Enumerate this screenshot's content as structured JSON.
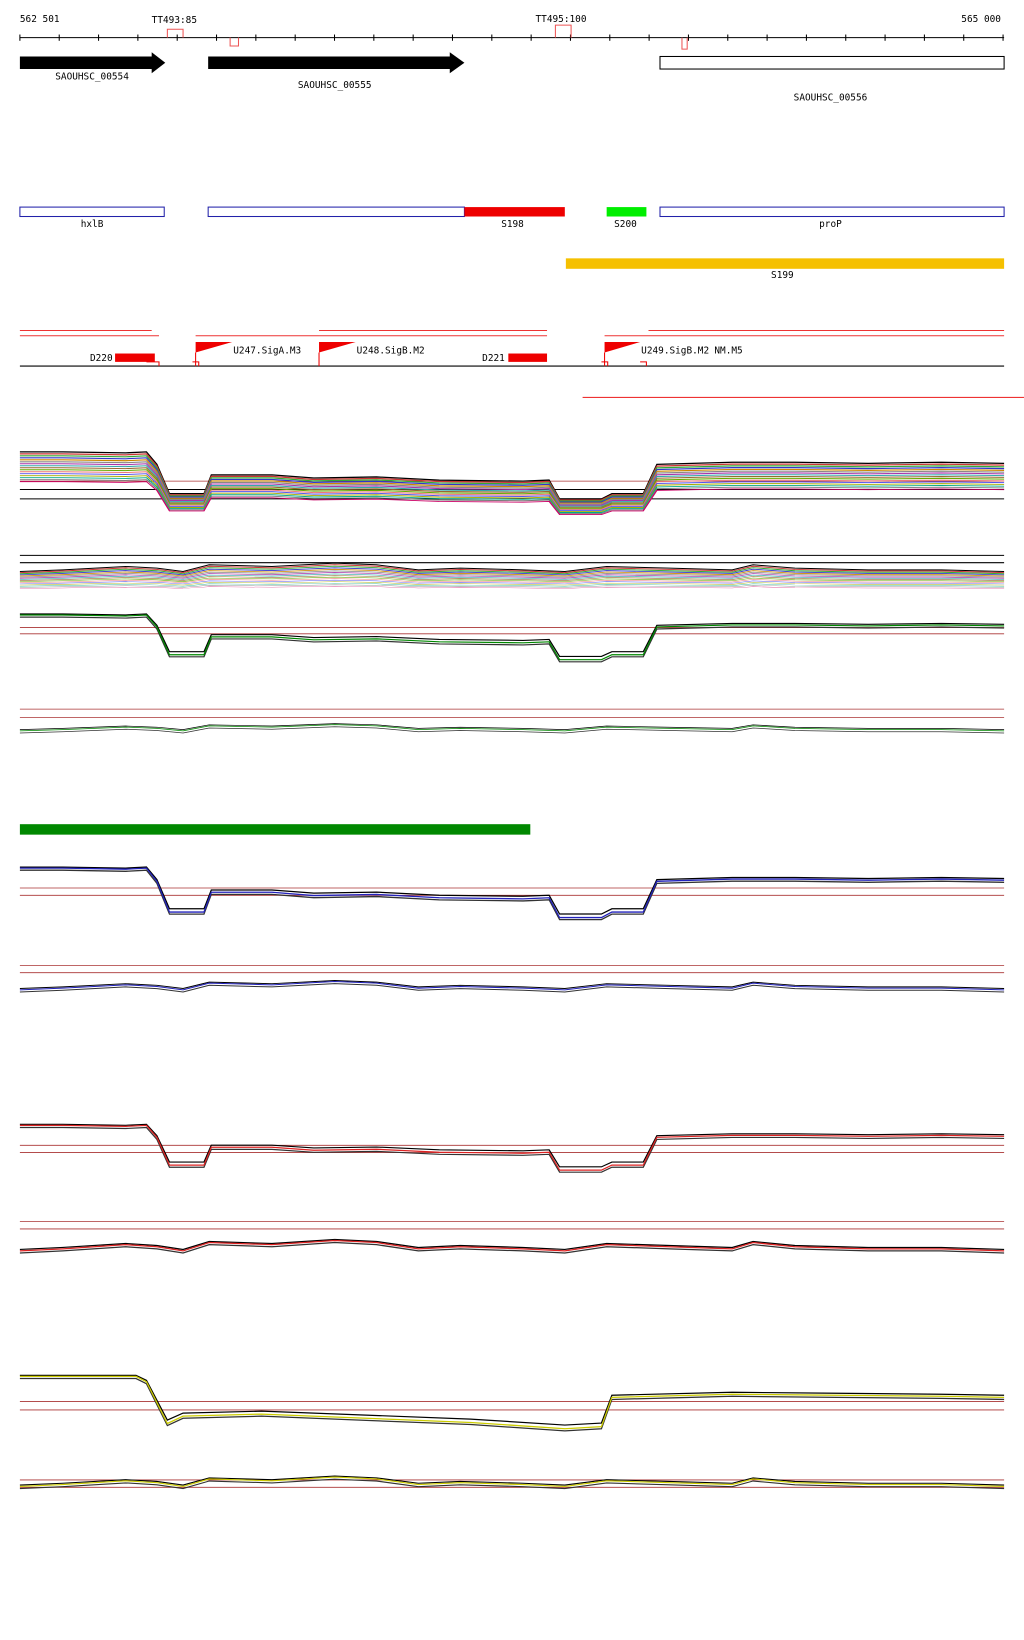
{
  "ruler": {
    "start": "562 501",
    "end": "565 000",
    "markers": [
      "TT493:85",
      "TT495:100"
    ]
  },
  "genes": [
    "SAOUHSC_00554",
    "SAOUHSC_00555",
    "SAOUHSC_00556"
  ],
  "features": [
    "hxlB",
    "S198",
    "S200",
    "proP",
    "S199"
  ],
  "regulatory": [
    "D220",
    "U247.SigA.M3",
    "U248.SigB.M2",
    "D221",
    "U249.SigB.M2",
    "NM.M5"
  ]
}
